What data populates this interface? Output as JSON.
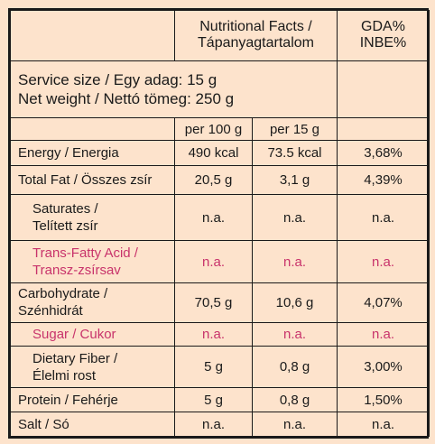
{
  "header": {
    "facts_label": "Nutritional Facts /",
    "facts_label_hu": "Tápanyagtartalom",
    "gda_label": "GDA%",
    "inbe_label": "INBE%"
  },
  "serving": {
    "size": "Service size / Egy adag: 15 g",
    "weight": "Net weight / Nettó tömeg: 250 g"
  },
  "columns": {
    "per100": "per 100 g",
    "per15": "per 15 g"
  },
  "rows": [
    {
      "name": "Energy / Energia",
      "name2": "",
      "per100": "490 kcal",
      "per15": "73.5 kcal",
      "gda": "3,68%"
    },
    {
      "name": "Total Fat / Összes zsír",
      "name2": "",
      "per100": "20,5 g",
      "per15": "3,1 g",
      "gda": "4,39%"
    },
    {
      "name": "Saturates /",
      "name2": "Telített zsír",
      "per100": "n.a.",
      "per15": "n.a.",
      "gda": "n.a."
    },
    {
      "name": "Trans-Fatty Acid /",
      "name2": "Transz-zsírsav",
      "per100": "n.a.",
      "per15": "n.a.",
      "gda": "n.a."
    },
    {
      "name": "Carbohydrate /",
      "name2": "Szénhidrát",
      "per100": "70,5 g",
      "per15": "10,6 g",
      "gda": "4,07%"
    },
    {
      "name": "Sugar / Cukor",
      "name2": "",
      "per100": "n.a.",
      "per15": "n.a.",
      "gda": "n.a."
    },
    {
      "name": "Dietary Fiber /",
      "name2": "Élelmi rost",
      "per100": "5 g",
      "per15": "0,8 g",
      "gda": "3,00%"
    },
    {
      "name": "Protein / Fehérje",
      "name2": "",
      "per100": "5 g",
      "per15": "0,8 g",
      "gda": "1,50%"
    },
    {
      "name": "Salt / Só",
      "name2": "",
      "per100": "n.a.",
      "per15": "n.a.",
      "gda": "n.a."
    }
  ],
  "colors": {
    "background": "#fde3cc",
    "text": "#1a1a1a",
    "highlight": "#c8336b"
  }
}
